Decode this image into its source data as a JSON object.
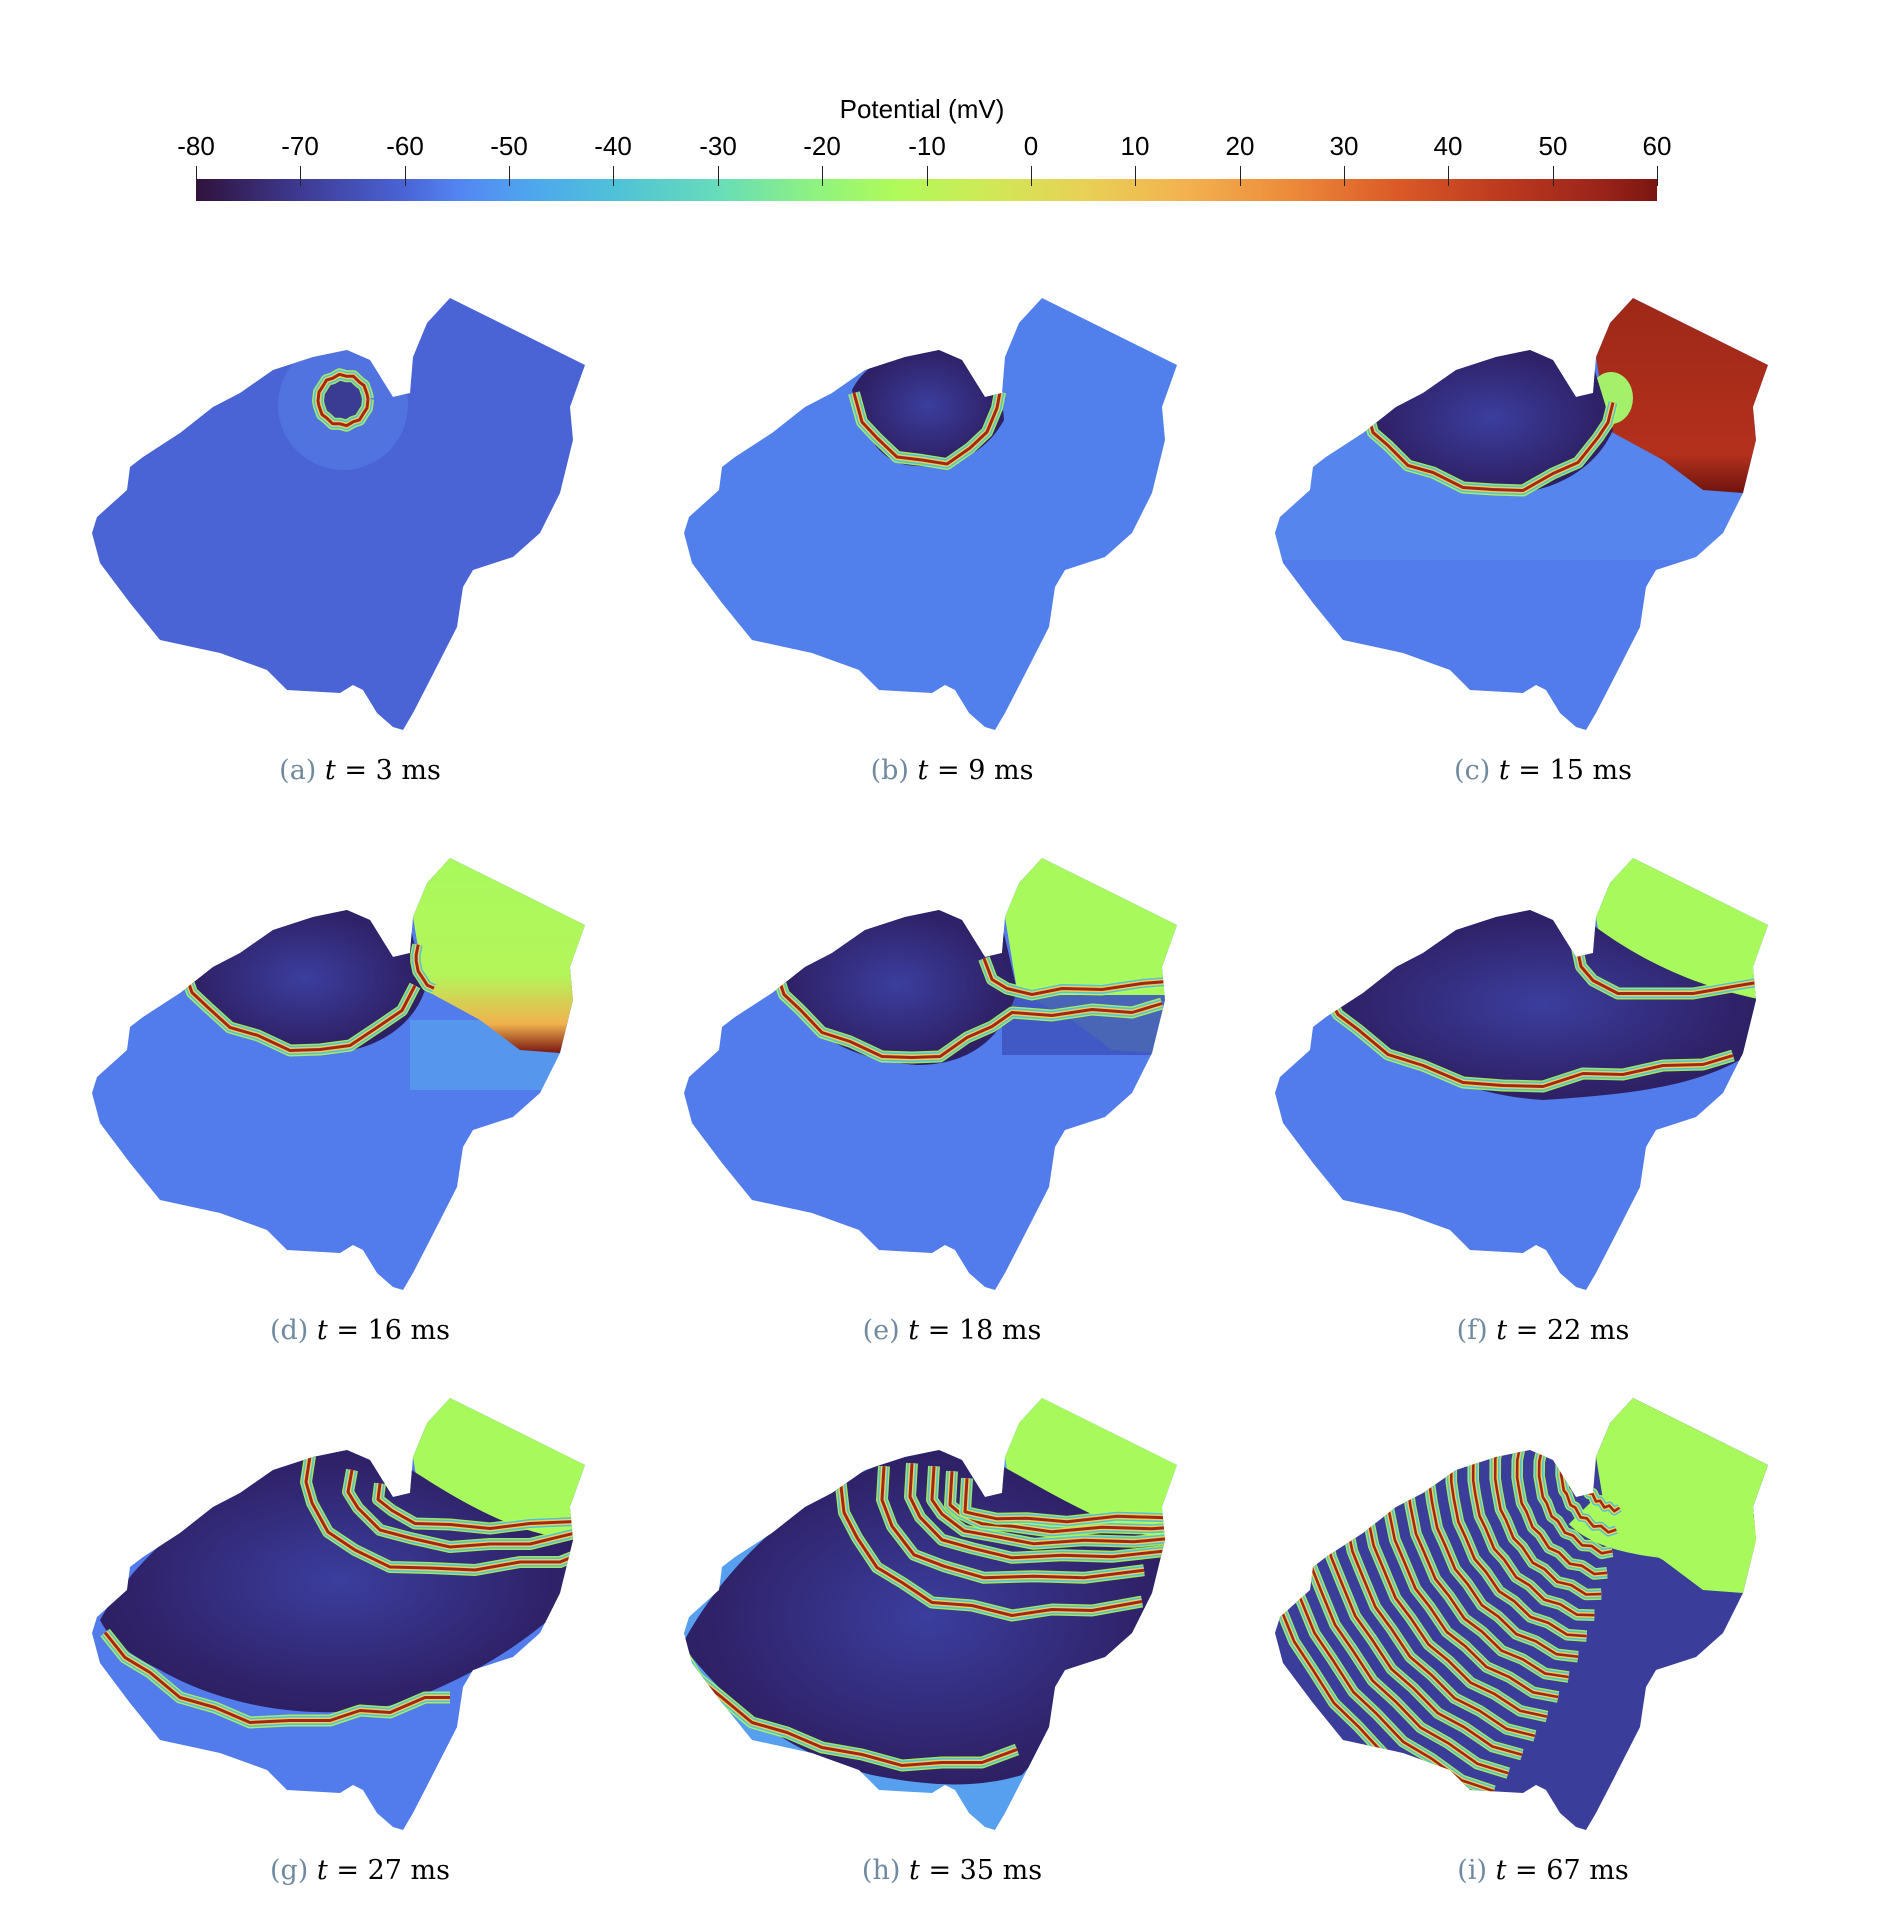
{
  "figure": {
    "colorbar": {
      "title": "Potential (mV)",
      "min": -80,
      "max": 60,
      "ticks": [
        "-80",
        "-70",
        "-60",
        "-50",
        "-40",
        "-30",
        "-20",
        "-10",
        "0",
        "10",
        "20",
        "30",
        "40",
        "50",
        "60"
      ],
      "colormap_stops": [
        {
          "v": -80,
          "color": "#30123b"
        },
        {
          "v": -70,
          "color": "#3e3a93"
        },
        {
          "v": -60,
          "color": "#4a64d6"
        },
        {
          "v": -55,
          "color": "#5384f2"
        },
        {
          "v": -48,
          "color": "#4ea6ee"
        },
        {
          "v": -40,
          "color": "#4fc1d8"
        },
        {
          "v": -30,
          "color": "#67dcba"
        },
        {
          "v": -20,
          "color": "#91f47c"
        },
        {
          "v": -13,
          "color": "#b0fa5a"
        },
        {
          "v": -5,
          "color": "#cdeb56"
        },
        {
          "v": 5,
          "color": "#e8d156"
        },
        {
          "v": 15,
          "color": "#f3b14f"
        },
        {
          "v": 25,
          "color": "#ec8a3a"
        },
        {
          "v": 35,
          "color": "#db5a27"
        },
        {
          "v": 45,
          "color": "#bd3a1f"
        },
        {
          "v": 55,
          "color": "#99231a"
        },
        {
          "v": 60,
          "color": "#7a1610"
        }
      ]
    },
    "panels": [
      {
        "label": "(a)",
        "variable": "t",
        "equals": "=",
        "value": "3",
        "unit": "ms",
        "base": "#4a64d6",
        "state": "stimulus"
      },
      {
        "label": "(b)",
        "variable": "t",
        "equals": "=",
        "value": "9",
        "unit": "ms",
        "base": "#5180ec",
        "state": "expanding"
      },
      {
        "label": "(c)",
        "variable": "t",
        "equals": "=",
        "value": "15",
        "unit": "ms",
        "base": "#527ceb",
        "state": "appendage-depolarized"
      },
      {
        "label": "(d)",
        "variable": "t",
        "equals": "=",
        "value": "16",
        "unit": "ms",
        "base": "#527ceb",
        "state": "appendage-plateau"
      },
      {
        "label": "(e)",
        "variable": "t",
        "equals": "=",
        "value": "18",
        "unit": "ms",
        "base": "#527ceb",
        "state": "front-merging"
      },
      {
        "label": "(f)",
        "variable": "t",
        "equals": "=",
        "value": "22",
        "unit": "ms",
        "base": "#527ceb",
        "state": "two-fronts"
      },
      {
        "label": "(g)",
        "variable": "t",
        "equals": "=",
        "value": "27",
        "unit": "ms",
        "base": "#527ceb",
        "state": "multiple-fronts"
      },
      {
        "label": "(h)",
        "variable": "t",
        "equals": "=",
        "value": "35",
        "unit": "ms",
        "base": "#57a0f0",
        "state": "many-fronts"
      },
      {
        "label": "(i)",
        "variable": "t",
        "equals": "=",
        "value": "67",
        "unit": "ms",
        "base": "#3a3d9a",
        "state": "spiral-waves"
      }
    ]
  },
  "chart_data": {
    "type": "heatmap",
    "title": "Potential (mV)",
    "colorbar_range": [
      -80,
      60
    ],
    "colorbar_ticks": [
      -80,
      -70,
      -60,
      -50,
      -40,
      -30,
      -20,
      -10,
      0,
      10,
      20,
      30,
      40,
      50,
      60
    ],
    "panels": [
      {
        "label": "(a)",
        "t_ms": 3
      },
      {
        "label": "(b)",
        "t_ms": 9
      },
      {
        "label": "(c)",
        "t_ms": 15
      },
      {
        "label": "(d)",
        "t_ms": 16
      },
      {
        "label": "(e)",
        "t_ms": 18
      },
      {
        "label": "(f)",
        "t_ms": 22
      },
      {
        "label": "(g)",
        "t_ms": 27
      },
      {
        "label": "(h)",
        "t_ms": 35
      },
      {
        "label": "(i)",
        "t_ms": 67
      }
    ],
    "layout": {
      "rows": 3,
      "cols": 3,
      "legend_position": "top"
    }
  }
}
